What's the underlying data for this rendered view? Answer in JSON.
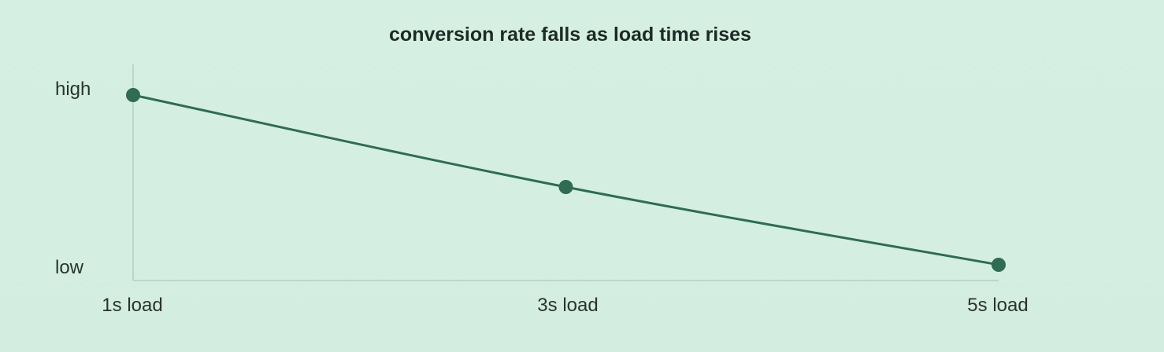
{
  "chart_data": {
    "type": "line",
    "title": "conversion rate falls as load time rises",
    "xlabel": "",
    "ylabel": "",
    "x_tick_labels": [
      "1s load",
      "3s load",
      "5s load"
    ],
    "y_tick_labels": [
      "high",
      "low"
    ],
    "x": [
      1,
      3,
      5
    ],
    "xlim": [
      1,
      5
    ],
    "ylim": [
      0,
      1
    ],
    "series": [
      {
        "values": [
          0.96,
          0.44,
          0.0
        ]
      }
    ],
    "grid": false,
    "legend": "none",
    "colors": {
      "line": "#2f6b55",
      "marker": "#2f6b55",
      "axis": "#b9d8c9",
      "background": "#d5eee2"
    }
  }
}
